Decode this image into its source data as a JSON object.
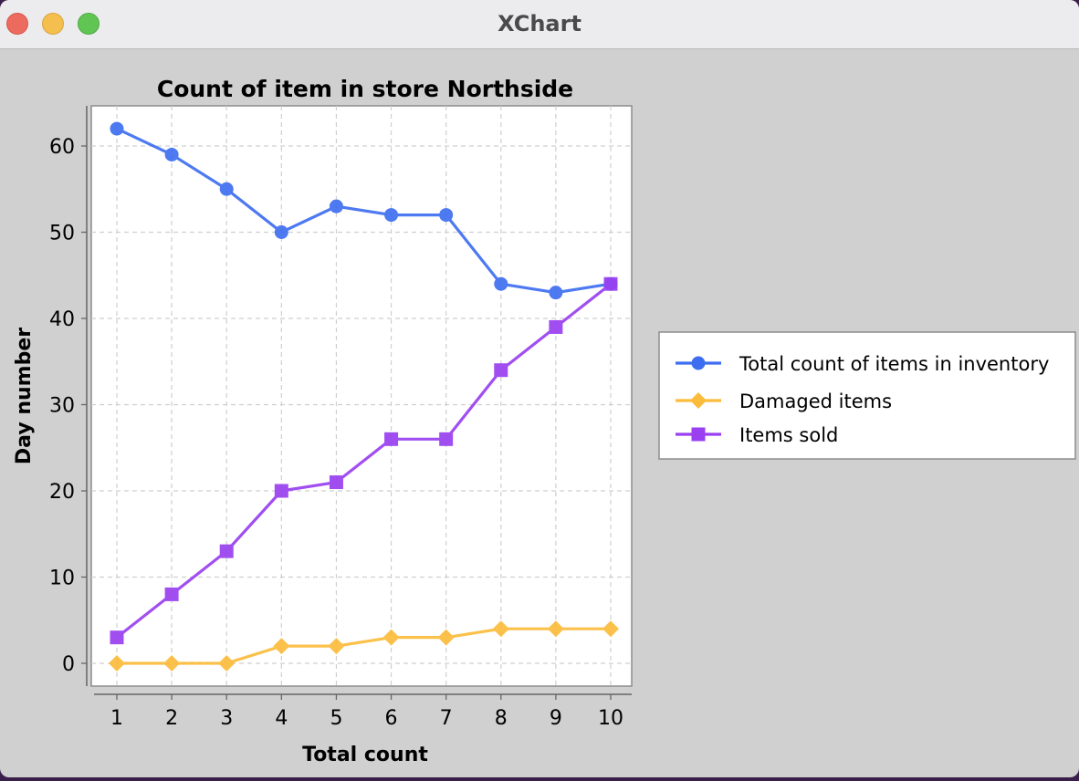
{
  "window": {
    "title": "XChart"
  },
  "chart_data": {
    "type": "line",
    "title": "Count of item in store Northside",
    "xlabel": "Total count",
    "ylabel": "Day number",
    "x": [
      1,
      2,
      3,
      4,
      5,
      6,
      7,
      8,
      9,
      10
    ],
    "xlim": [
      1,
      10
    ],
    "ylim": [
      0,
      60
    ],
    "yticks": [
      0,
      10,
      20,
      30,
      40,
      50,
      60
    ],
    "grid": true,
    "legend_position": "outside-right",
    "series": [
      {
        "name": "Total count of items in inventory",
        "marker": "circle",
        "color": "#3e6ef0",
        "values": [
          62,
          59,
          55,
          50,
          53,
          52,
          52,
          44,
          43,
          44
        ]
      },
      {
        "name": "Damaged items",
        "marker": "diamond",
        "color": "#fbbc3c",
        "values": [
          0,
          0,
          0,
          2,
          2,
          3,
          3,
          4,
          4,
          4
        ]
      },
      {
        "name": "Items sold",
        "marker": "square",
        "color": "#9a40f0",
        "values": [
          3,
          8,
          13,
          20,
          21,
          26,
          26,
          34,
          39,
          44
        ]
      }
    ]
  }
}
